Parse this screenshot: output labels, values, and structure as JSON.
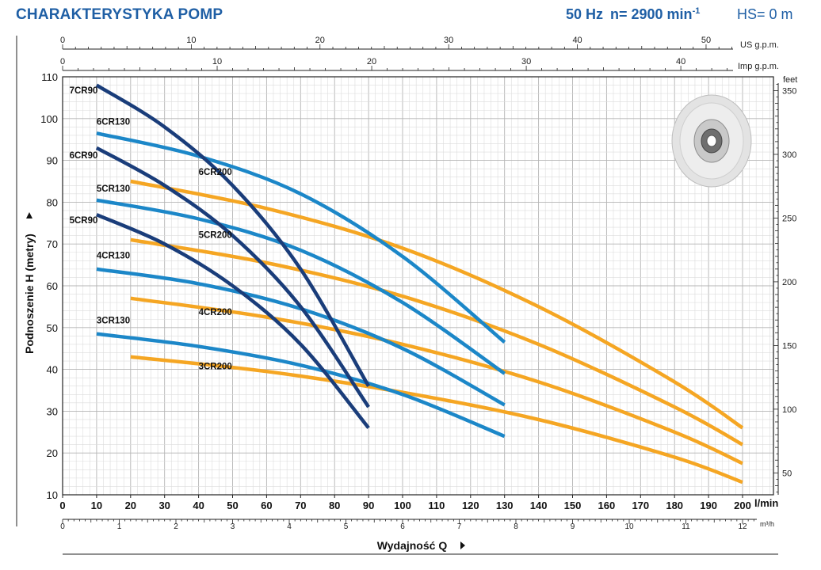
{
  "header": {
    "title": "CHARAKTERYSTYKA POMP",
    "frequency": "50 Hz",
    "speed_label": "n= 2900 min",
    "speed_exp": "-1",
    "hs": "HS= 0 m"
  },
  "colors": {
    "cr90": "#1a3d7a",
    "cr130": "#1c87c8",
    "cr200": "#f5a623",
    "grid": "#c8c8c8",
    "title": "#1f5fa5"
  },
  "chart_data": {
    "type": "line",
    "title": "CHARAKTERYSTYKA POMP",
    "xlabel": "Wydajność Q",
    "ylabel": "Podnoszenie H (metry)",
    "xlim": [
      0,
      200
    ],
    "ylim": [
      10,
      110
    ],
    "x_unit": "l/min",
    "x_ticks": [
      0,
      10,
      20,
      30,
      40,
      50,
      60,
      70,
      80,
      90,
      100,
      110,
      120,
      130,
      140,
      150,
      160,
      170,
      180,
      190,
      200
    ],
    "y_ticks": [
      10,
      20,
      30,
      40,
      50,
      60,
      70,
      80,
      90,
      100,
      110
    ],
    "secondary_axes": {
      "us_gpm": {
        "label": "US g.p.m.",
        "ticks": [
          0,
          10,
          20,
          30,
          40,
          50
        ]
      },
      "imp_gpm": {
        "label": "Imp g.p.m.",
        "ticks": [
          0,
          10,
          20,
          30,
          40
        ]
      },
      "m3h": {
        "label": "m³/h",
        "ticks": [
          0,
          1,
          2,
          3,
          4,
          5,
          6,
          7,
          8,
          9,
          10,
          11,
          12
        ]
      },
      "feet": {
        "label": "feet",
        "ticks": [
          50,
          100,
          150,
          200,
          250,
          300,
          350
        ]
      }
    },
    "series": [
      {
        "name": "7CR90",
        "group": "cr90",
        "x": [
          10,
          30,
          50,
          70,
          90
        ],
        "y": [
          108,
          98,
          84,
          64,
          36
        ]
      },
      {
        "name": "6CR90",
        "group": "cr90",
        "x": [
          10,
          30,
          50,
          70,
          90
        ],
        "y": [
          93,
          84,
          72,
          55,
          31
        ]
      },
      {
        "name": "5CR90",
        "group": "cr90",
        "x": [
          10,
          30,
          50,
          70,
          90
        ],
        "y": [
          77,
          70,
          60,
          46,
          26
        ]
      },
      {
        "name": "6CR130",
        "group": "cr130",
        "x": [
          10,
          40,
          70,
          100,
          130
        ],
        "y": [
          96.5,
          91,
          82,
          67,
          46.5
        ]
      },
      {
        "name": "5CR130",
        "group": "cr130",
        "x": [
          10,
          40,
          70,
          100,
          130
        ],
        "y": [
          80.5,
          76,
          68.5,
          56,
          39
        ]
      },
      {
        "name": "4CR130",
        "group": "cr130",
        "x": [
          10,
          40,
          70,
          100,
          130
        ],
        "y": [
          64,
          60.5,
          54.5,
          45,
          31.5
        ]
      },
      {
        "name": "3CR130",
        "group": "cr130",
        "x": [
          10,
          40,
          70,
          100,
          130
        ],
        "y": [
          48.5,
          45.5,
          41,
          34,
          24
        ]
      },
      {
        "name": "6CR200",
        "group": "cr200",
        "x": [
          20,
          60,
          100,
          140,
          180,
          200
        ],
        "y": [
          85,
          78.5,
          69,
          55,
          37,
          26
        ]
      },
      {
        "name": "5CR200",
        "group": "cr200",
        "x": [
          20,
          60,
          100,
          140,
          180,
          200
        ],
        "y": [
          71,
          65.5,
          57.5,
          46,
          31,
          22
        ]
      },
      {
        "name": "4CR200",
        "group": "cr200",
        "x": [
          20,
          60,
          100,
          140,
          180,
          200
        ],
        "y": [
          57,
          52.5,
          46,
          37,
          25,
          17.5
        ]
      },
      {
        "name": "3CR200",
        "group": "cr200",
        "x": [
          20,
          60,
          100,
          140,
          180,
          200
        ],
        "y": [
          43,
          39.5,
          34.5,
          28,
          19,
          13
        ]
      }
    ],
    "labels": [
      {
        "text": "7CR90",
        "x": 2,
        "y": 106
      },
      {
        "text": "6CR130",
        "x": 10,
        "y": 98.5
      },
      {
        "text": "6CR90",
        "x": 2,
        "y": 90.5
      },
      {
        "text": "5CR130",
        "x": 10,
        "y": 82.5
      },
      {
        "text": "5CR90",
        "x": 2,
        "y": 75
      },
      {
        "text": "4CR130",
        "x": 10,
        "y": 66.5
      },
      {
        "text": "3CR130",
        "x": 10,
        "y": 51
      },
      {
        "text": "6CR200",
        "x": 40,
        "y": 86.5
      },
      {
        "text": "5CR200",
        "x": 40,
        "y": 71.5
      },
      {
        "text": "4CR200",
        "x": 40,
        "y": 53
      },
      {
        "text": "3CR200",
        "x": 40,
        "y": 40
      }
    ]
  }
}
